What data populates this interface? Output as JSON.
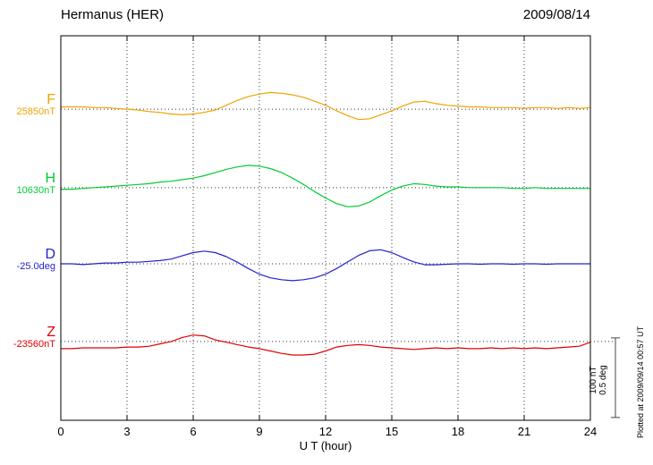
{
  "chart_data": {
    "type": "line",
    "title": "Hermanus (HER)",
    "date": "2009/08/14",
    "xlabel": "U T (hour)",
    "x_range": [
      0,
      24
    ],
    "x_ticks": [
      0,
      3,
      6,
      9,
      12,
      15,
      18,
      21,
      24
    ],
    "grid_hours": [
      3,
      6,
      9,
      12,
      15,
      18,
      21
    ],
    "scale_bar_labels": [
      "100 nT",
      "0.5 deg"
    ],
    "plotted_note": "Plotted at 2009/09/14 00:57 UT",
    "scale": {
      "nT_per_bar": 100,
      "deg_per_bar": 0.5
    },
    "x": [
      0,
      0.5,
      1,
      1.5,
      2,
      2.5,
      3,
      3.5,
      4,
      4.5,
      5,
      5.5,
      6,
      6.5,
      7,
      7.5,
      8,
      8.5,
      9,
      9.5,
      10,
      10.5,
      11,
      11.5,
      12,
      12.5,
      13,
      13.5,
      14,
      14.5,
      15,
      15.5,
      16,
      16.5,
      17,
      17.5,
      18,
      18.5,
      19,
      19.5,
      20,
      20.5,
      21,
      21.5,
      22,
      22.5,
      23,
      23.5,
      24
    ],
    "series": [
      {
        "label": "F",
        "baseline_label": "25850nT",
        "unit": "nT",
        "color": "#f0a202",
        "baseline_frac": 0.191,
        "offsets": [
          3,
          3,
          3,
          2,
          2,
          1,
          0,
          -1,
          -3,
          -4,
          -6,
          -7,
          -6,
          -4,
          -1,
          5,
          11,
          16,
          19,
          21,
          20,
          18,
          15,
          10,
          5,
          -2,
          -8,
          -13,
          -12,
          -7,
          -2,
          4,
          9,
          10,
          7,
          5,
          4,
          3,
          3,
          2,
          2,
          2,
          1,
          2,
          2,
          1,
          2,
          1,
          2
        ]
      },
      {
        "label": "H",
        "baseline_label": "10630nT",
        "unit": "nT",
        "color": "#00cc33",
        "baseline_frac": 0.395,
        "offsets": [
          -2,
          -2,
          -1,
          0,
          1,
          2,
          3,
          4,
          5,
          7,
          8,
          10,
          12,
          15,
          19,
          23,
          26,
          28,
          27,
          24,
          19,
          12,
          4,
          -5,
          -13,
          -20,
          -24,
          -23,
          -18,
          -10,
          -3,
          2,
          5,
          4,
          2,
          1,
          1,
          0,
          0,
          0,
          0,
          -1,
          -1,
          0,
          -1,
          -1,
          -1,
          -1,
          -1
        ]
      },
      {
        "label": "D",
        "baseline_label": "-25.0deg",
        "unit": "deg",
        "color": "#2222cc",
        "baseline_frac": 0.593,
        "offsets": [
          0,
          0,
          -0.005,
          0,
          0.005,
          0.005,
          0.01,
          0.01,
          0.015,
          0.02,
          0.03,
          0.05,
          0.07,
          0.08,
          0.07,
          0.045,
          0.01,
          -0.03,
          -0.065,
          -0.088,
          -0.1,
          -0.106,
          -0.1,
          -0.088,
          -0.065,
          -0.03,
          0.012,
          0.053,
          0.082,
          0.088,
          0.07,
          0.04,
          0.012,
          -0.006,
          -0.006,
          -0.003,
          0,
          0,
          -0.003,
          0,
          0,
          -0.003,
          0,
          0,
          -0.003,
          0,
          0,
          0,
          0
        ]
      },
      {
        "label": "Z",
        "baseline_label": "-23560nT",
        "unit": "nT",
        "color": "#e00000",
        "baseline_frac": 0.795,
        "offsets": [
          -9,
          -9,
          -8,
          -8,
          -8,
          -8,
          -7,
          -7,
          -6,
          -3,
          0,
          5,
          8,
          7,
          2,
          -1,
          -4,
          -7,
          -9,
          -12,
          -15,
          -17,
          -17,
          -16,
          -12,
          -7,
          -5,
          -4,
          -5,
          -7,
          -8,
          -9,
          -10,
          -9,
          -8,
          -9,
          -8,
          -9,
          -9,
          -8,
          -9,
          -8,
          -9,
          -8,
          -9,
          -8,
          -7,
          -6,
          -1
        ]
      }
    ]
  }
}
